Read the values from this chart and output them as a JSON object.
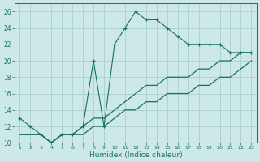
{
  "xlabel": "Humidex (Indice chaleur)",
  "bg_color": "#cce8e8",
  "grid_color": "#aacfcf",
  "line_color": "#1a7060",
  "x": [
    1,
    2,
    3,
    4,
    5,
    6,
    7,
    8,
    9,
    10,
    11,
    12,
    13,
    14,
    15,
    16,
    17,
    18,
    19,
    20,
    21,
    22,
    23
  ],
  "y_humidex": [
    13,
    12,
    11,
    10,
    11,
    11,
    12,
    20,
    12,
    22,
    24,
    26,
    25,
    25,
    24,
    23,
    22,
    22,
    22,
    22,
    21,
    21,
    21
  ],
  "y_upper": [
    11,
    11,
    11,
    10,
    11,
    11,
    12,
    13,
    13,
    14,
    15,
    16,
    17,
    17,
    18,
    18,
    18,
    19,
    19,
    20,
    20,
    21,
    21
  ],
  "y_lower": [
    11,
    11,
    11,
    10,
    11,
    11,
    11,
    12,
    12,
    13,
    14,
    14,
    15,
    15,
    16,
    16,
    16,
    17,
    17,
    18,
    18,
    19,
    20
  ],
  "ylim": [
    10,
    27
  ],
  "xlim": [
    0.5,
    23.5
  ],
  "yticks": [
    10,
    12,
    14,
    16,
    18,
    20,
    22,
    24,
    26
  ]
}
